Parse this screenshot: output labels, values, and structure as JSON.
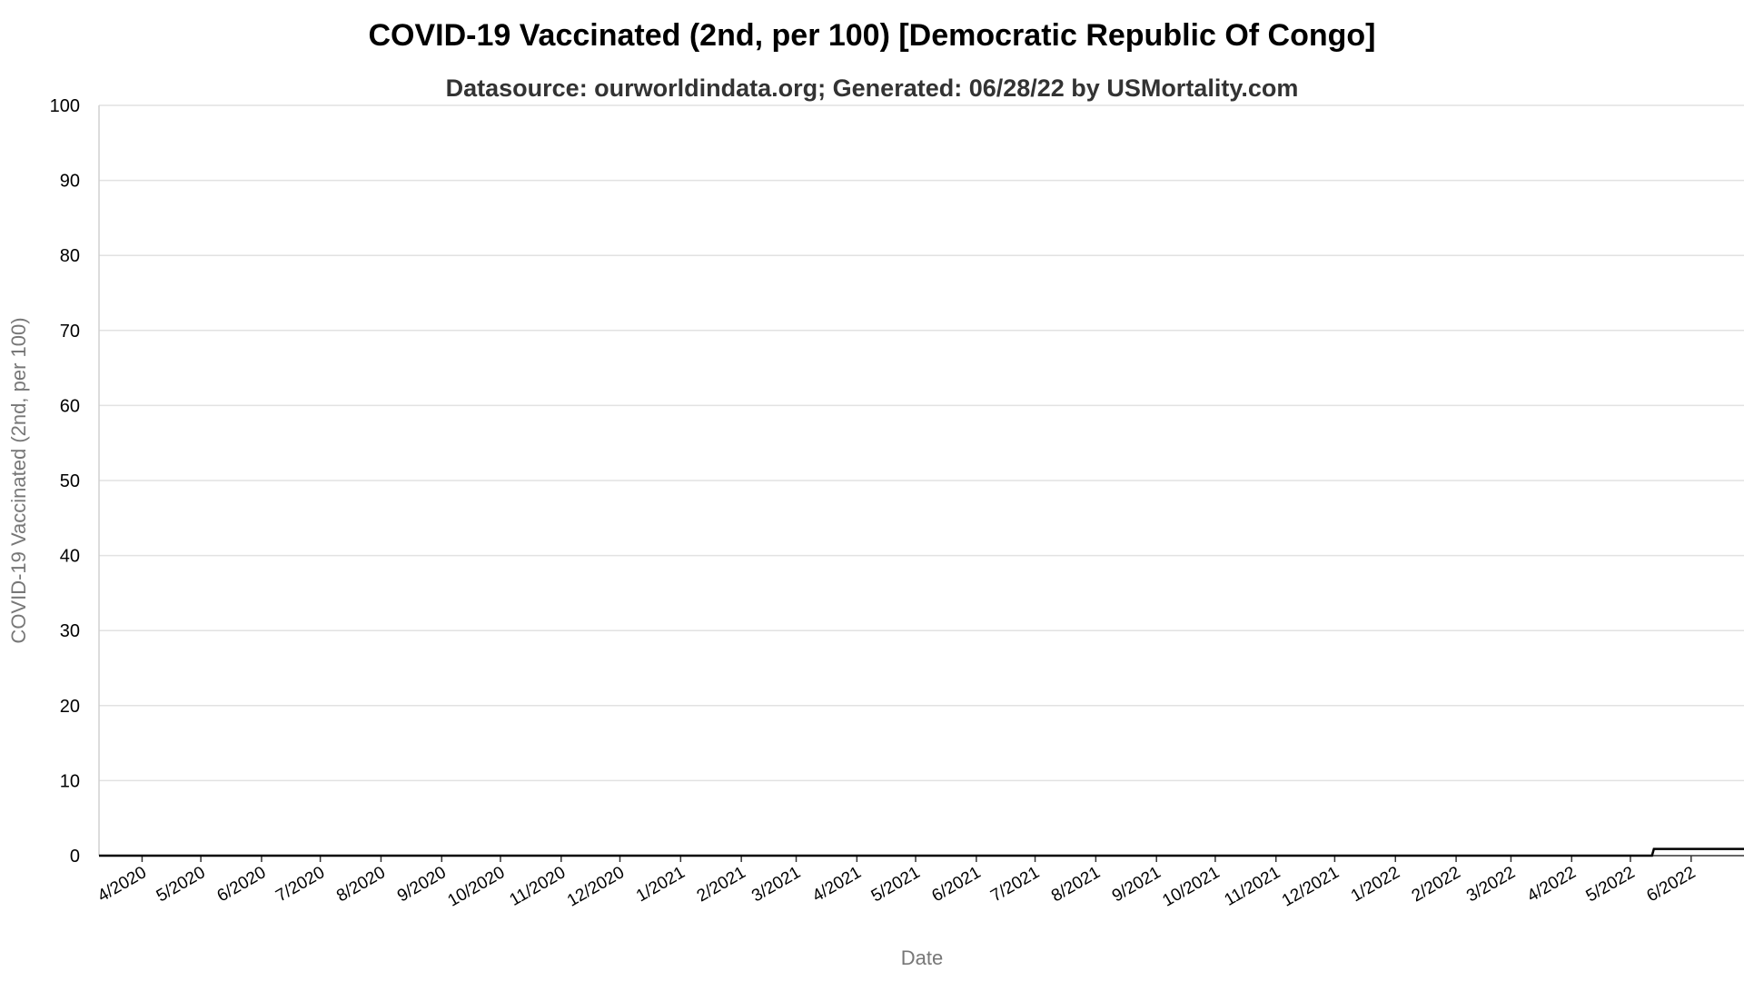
{
  "chart_data": {
    "type": "line",
    "title": "COVID-19 Vaccinated (2nd, per 100) [Democratic Republic Of Congo]",
    "subtitle": "Datasource: ourworldindata.org; Generated: 06/28/22 by USMortality.com",
    "xlabel": "Date",
    "ylabel": "COVID-19 Vaccinated (2nd, per 100)",
    "ylim": [
      0,
      100
    ],
    "yticks": [
      0,
      10,
      20,
      30,
      40,
      50,
      60,
      70,
      80,
      90,
      100
    ],
    "xlim": [
      "2020-03-10",
      "2022-06-28"
    ],
    "xticks": [
      {
        "label": "4/2020",
        "date": "2020-04-01"
      },
      {
        "label": "5/2020",
        "date": "2020-05-01"
      },
      {
        "label": "6/2020",
        "date": "2020-06-01"
      },
      {
        "label": "7/2020",
        "date": "2020-07-01"
      },
      {
        "label": "8/2020",
        "date": "2020-08-01"
      },
      {
        "label": "9/2020",
        "date": "2020-09-01"
      },
      {
        "label": "10/2020",
        "date": "2020-10-01"
      },
      {
        "label": "11/2020",
        "date": "2020-11-01"
      },
      {
        "label": "12/2020",
        "date": "2020-12-01"
      },
      {
        "label": "1/2021",
        "date": "2021-01-01"
      },
      {
        "label": "2/2021",
        "date": "2021-02-01"
      },
      {
        "label": "3/2021",
        "date": "2021-03-01"
      },
      {
        "label": "4/2021",
        "date": "2021-04-01"
      },
      {
        "label": "5/2021",
        "date": "2021-05-01"
      },
      {
        "label": "6/2021",
        "date": "2021-06-01"
      },
      {
        "label": "7/2021",
        "date": "2021-07-01"
      },
      {
        "label": "8/2021",
        "date": "2021-08-01"
      },
      {
        "label": "9/2021",
        "date": "2021-09-01"
      },
      {
        "label": "10/2021",
        "date": "2021-10-01"
      },
      {
        "label": "11/2021",
        "date": "2021-11-01"
      },
      {
        "label": "12/2021",
        "date": "2021-12-01"
      },
      {
        "label": "1/2022",
        "date": "2022-01-01"
      },
      {
        "label": "2/2022",
        "date": "2022-02-01"
      },
      {
        "label": "3/2022",
        "date": "2022-03-01"
      },
      {
        "label": "4/2022",
        "date": "2022-04-01"
      },
      {
        "label": "5/2022",
        "date": "2022-05-01"
      },
      {
        "label": "6/2022",
        "date": "2022-06-01"
      }
    ],
    "grid": true,
    "legend": "none",
    "line_color": "#000000",
    "series": [
      {
        "x": [
          "2020-03-10",
          "2022-05-12",
          "2022-05-13",
          "2022-06-28"
        ],
        "y": [
          0,
          0,
          0.9,
          0.9
        ]
      }
    ]
  }
}
